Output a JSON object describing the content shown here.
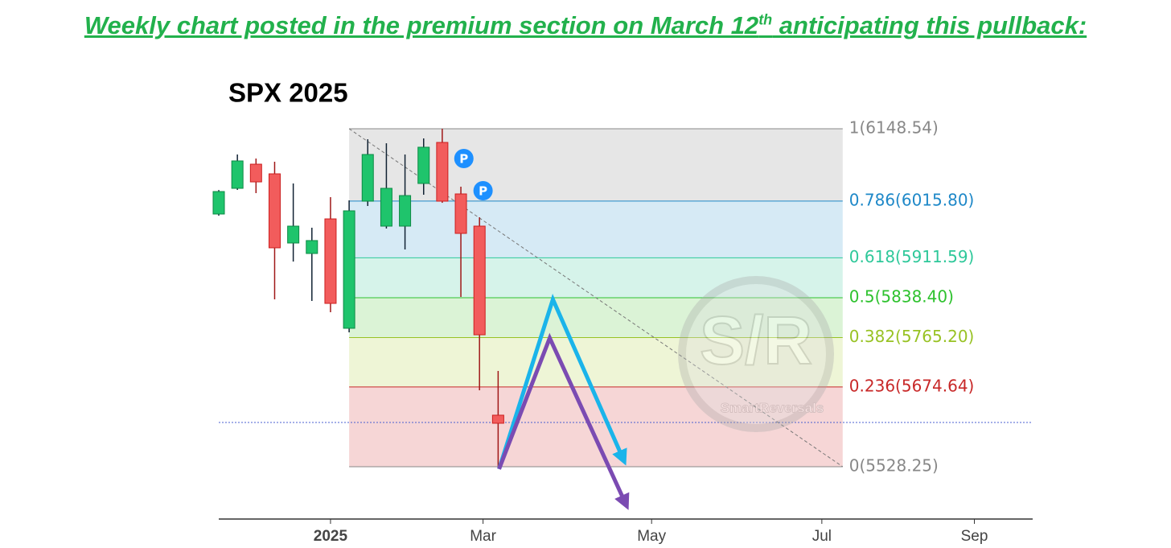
{
  "header": {
    "before": "Weekly chart posted in the premium section on March 12",
    "sup": "th",
    "after": " anticipating this pullback:"
  },
  "chart_data": {
    "type": "candlestick",
    "title": "SPX 2025",
    "x": [
      -6,
      -5,
      -4,
      -3,
      -2,
      -1,
      0,
      1,
      2,
      3,
      4,
      5,
      6,
      7,
      8,
      9
    ],
    "open": [
      5992.0,
      6039.2,
      6083.5,
      6065.8,
      5938.8,
      5919.6,
      5983.1,
      5782.3,
      6015.6,
      5969.8,
      5969.8,
      6048.1,
      6123.4,
      6028.9,
      5969.8,
      5622.8
    ],
    "high": [
      6036.0,
      6101.3,
      6093.9,
      6088.0,
      6048.1,
      5966.9,
      6023.0,
      6017.1,
      6129.3,
      6121.9,
      6101.3,
      6130.8,
      6148.5,
      6042.2,
      5986.1,
      5704.0
    ],
    "low": [
      5989.0,
      6036.3,
      6030.4,
      5835.4,
      5904.8,
      5832.5,
      5811.8,
      5774.9,
      6006.8,
      5965.4,
      5927.0,
      6027.4,
      6012.6,
      5839.9,
      5668.5,
      5528.3
    ],
    "close": [
      6033.3,
      6089.5,
      6051.0,
      5930.0,
      5969.8,
      5943.3,
      5828.0,
      5997.9,
      6101.3,
      6039.2,
      6025.9,
      6114.6,
      6015.6,
      5956.5,
      5770.4,
      5608.0
    ],
    "up_color": "#1fc46c",
    "down_color": "#f25c5c",
    "xlim": [
      -6,
      37.7
    ],
    "xticks": [
      {
        "value": 0,
        "label": "2025"
      },
      {
        "value": 8.19,
        "label": "Mar"
      },
      {
        "value": 17.24,
        "label": "May"
      },
      {
        "value": 26.38,
        "label": "Jul"
      },
      {
        "value": 34.57,
        "label": "Sep"
      }
    ],
    "ylim": [
      5432.2,
      6163.3
    ],
    "fib_range_x": [
      1,
      27.5
    ],
    "fib_levels": [
      {
        "value": 6148.54,
        "label": "1(6148.54)",
        "color": "#888888",
        "fill": "#e6e6e6"
      },
      {
        "value": 6015.8,
        "label": "0.786(6015.80)",
        "color": "#1e88c8",
        "fill": "#d6eaf5"
      },
      {
        "value": 5911.59,
        "label": "0.618(5911.59)",
        "color": "#2ec89a",
        "fill": "#d6f3ea"
      },
      {
        "value": 5838.4,
        "label": "0.5(5838.40)",
        "color": "#2ec22e",
        "fill": "#dbf3d6"
      },
      {
        "value": 5765.2,
        "label": "0.382(5765.20)",
        "color": "#98c224",
        "fill": "#eef5d6"
      },
      {
        "value": 5674.64,
        "label": "0.236(5674.64)",
        "color": "#c82828",
        "fill": "#f6d6d6"
      },
      {
        "value": 5528.25,
        "label": "0(5528.25)",
        "color": "#888888"
      }
    ],
    "price_line": 5609.5,
    "markers": [
      {
        "x": 7.16,
        "y": 6093.9,
        "label": "P"
      },
      {
        "x": 8.19,
        "y": 6034.8,
        "label": "P"
      }
    ],
    "arrows": [
      {
        "color": "#1ab4ea",
        "x": [
          9.05,
          11.94,
          15.73
        ],
        "y": [
          5524,
          5835.4,
          5541.1
        ]
      },
      {
        "color": "#7b4bb2",
        "x": [
          9.05,
          11.77,
          15.86
        ],
        "y": [
          5524,
          5764.5,
          5459.3
        ]
      }
    ],
    "watermark": {
      "logo": "S/R",
      "name": "SmartReversals"
    }
  }
}
